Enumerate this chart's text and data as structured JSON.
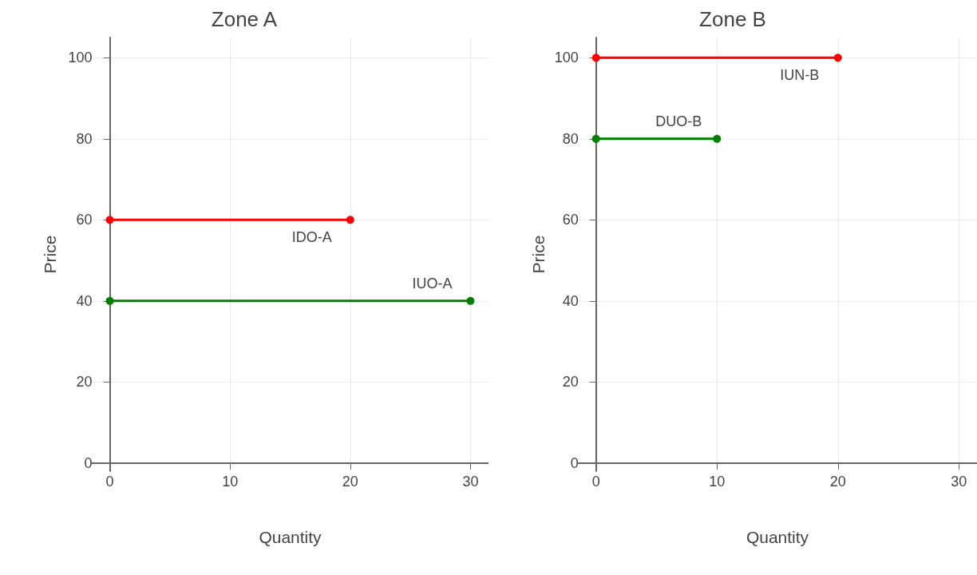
{
  "chart_data": [
    {
      "type": "line",
      "title": "Zone A",
      "xlabel": "Quantity",
      "ylabel": "Price",
      "xlim": [
        -1.5,
        31.5
      ],
      "ylim": [
        -2,
        105
      ],
      "xticks": [
        0,
        10,
        20,
        30
      ],
      "yticks": [
        0,
        20,
        40,
        60,
        80,
        100
      ],
      "grid": true,
      "marker": "circle",
      "line_style": "solid",
      "series": [
        {
          "name": "IDO-A",
          "color": "#ff0000",
          "x": [
            0,
            20
          ],
          "values": [
            60,
            60
          ]
        },
        {
          "name": "IUO-A",
          "color": "#008000",
          "x": [
            0,
            30
          ],
          "values": [
            40,
            40
          ]
        }
      ]
    },
    {
      "type": "line",
      "title": "Zone B",
      "xlabel": "Quantity",
      "ylabel": "Price",
      "xlim": [
        -1.5,
        31.5
      ],
      "ylim": [
        -2,
        105
      ],
      "xticks": [
        0,
        10,
        20,
        30
      ],
      "yticks": [
        0,
        20,
        40,
        60,
        80,
        100
      ],
      "grid": true,
      "marker": "circle",
      "line_style": "solid",
      "series": [
        {
          "name": "IUN-B",
          "color": "#ff0000",
          "x": [
            0,
            20
          ],
          "values": [
            100,
            100
          ]
        },
        {
          "name": "DUO-B",
          "color": "#008000",
          "x": [
            0,
            10
          ],
          "values": [
            80,
            80
          ]
        }
      ]
    }
  ]
}
